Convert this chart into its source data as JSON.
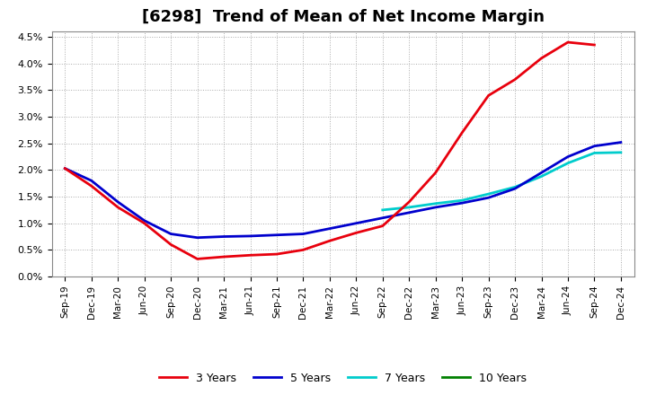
{
  "title": "[6298]  Trend of Mean of Net Income Margin",
  "ylim": [
    0.0,
    0.046
  ],
  "yticks": [
    0.0,
    0.005,
    0.01,
    0.015,
    0.02,
    0.025,
    0.03,
    0.035,
    0.04,
    0.045
  ],
  "x_labels": [
    "Sep-19",
    "Dec-19",
    "Mar-20",
    "Jun-20",
    "Sep-20",
    "Dec-20",
    "Mar-21",
    "Jun-21",
    "Sep-21",
    "Dec-21",
    "Mar-22",
    "Jun-22",
    "Sep-22",
    "Dec-22",
    "Mar-23",
    "Jun-23",
    "Sep-23",
    "Dec-23",
    "Mar-24",
    "Jun-24",
    "Sep-24",
    "Dec-24"
  ],
  "series_3y": [
    0.0203,
    0.017,
    0.013,
    0.01,
    0.006,
    0.0033,
    0.0037,
    0.004,
    0.0042,
    0.005,
    0.0067,
    0.0082,
    0.0095,
    0.014,
    0.0195,
    0.027,
    0.034,
    0.037,
    0.041,
    0.044,
    0.0435,
    null
  ],
  "series_5y": [
    0.0203,
    0.018,
    0.014,
    0.0105,
    0.008,
    0.0073,
    0.0075,
    0.0076,
    0.0078,
    0.008,
    0.009,
    0.01,
    0.011,
    0.012,
    0.013,
    0.0138,
    0.0148,
    0.0165,
    0.0195,
    0.0225,
    0.0245,
    0.0252
  ],
  "series_7y": [
    null,
    null,
    null,
    null,
    null,
    null,
    null,
    null,
    null,
    null,
    null,
    null,
    0.0125,
    0.013,
    0.0137,
    0.0143,
    0.0155,
    0.0168,
    0.0188,
    0.0213,
    0.0232,
    0.0233
  ],
  "series_10y": [
    null,
    null,
    null,
    null,
    null,
    null,
    null,
    null,
    null,
    null,
    null,
    null,
    null,
    null,
    null,
    null,
    null,
    null,
    null,
    null,
    null,
    null
  ],
  "color_3y": "#e8000d",
  "color_5y": "#0000cd",
  "color_7y": "#00cccc",
  "color_10y": "#008000",
  "background_color": "#ffffff",
  "grid_color": "#aaaaaa",
  "title_fontsize": 13,
  "legend_labels": [
    "3 Years",
    "5 Years",
    "7 Years",
    "10 Years"
  ]
}
